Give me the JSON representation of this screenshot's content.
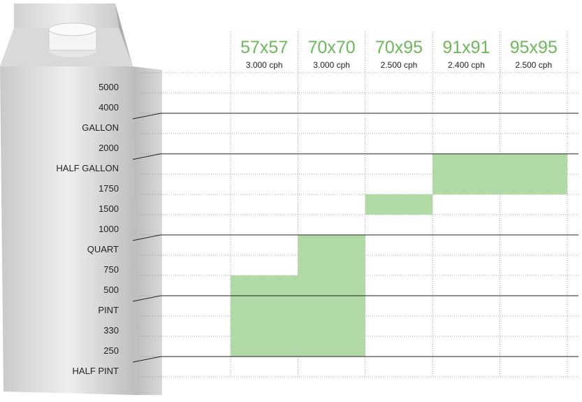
{
  "rows": [
    "5000",
    "4000",
    "GALLON",
    "2000",
    "HALF GALLON",
    "1750",
    "1500",
    "1000",
    "QUART",
    "750",
    "500",
    "PINT",
    "330",
    "250",
    "HALF PINT"
  ],
  "columns": [
    {
      "name": "57x57",
      "rate": "3.000 cph",
      "from": "500",
      "to": "250"
    },
    {
      "name": "70x70",
      "rate": "3.000 cph",
      "from": "QUART",
      "to": "250"
    },
    {
      "name": "70x95",
      "rate": "2.500 cph",
      "from": "1500",
      "to": "1500"
    },
    {
      "name": "91x91",
      "rate": "2.400 cph",
      "from": "HALF GALLON",
      "to": "1750"
    },
    {
      "name": "95x95",
      "rate": "2.500 cph",
      "from": "HALF GALLON",
      "to": "1750"
    }
  ]
}
